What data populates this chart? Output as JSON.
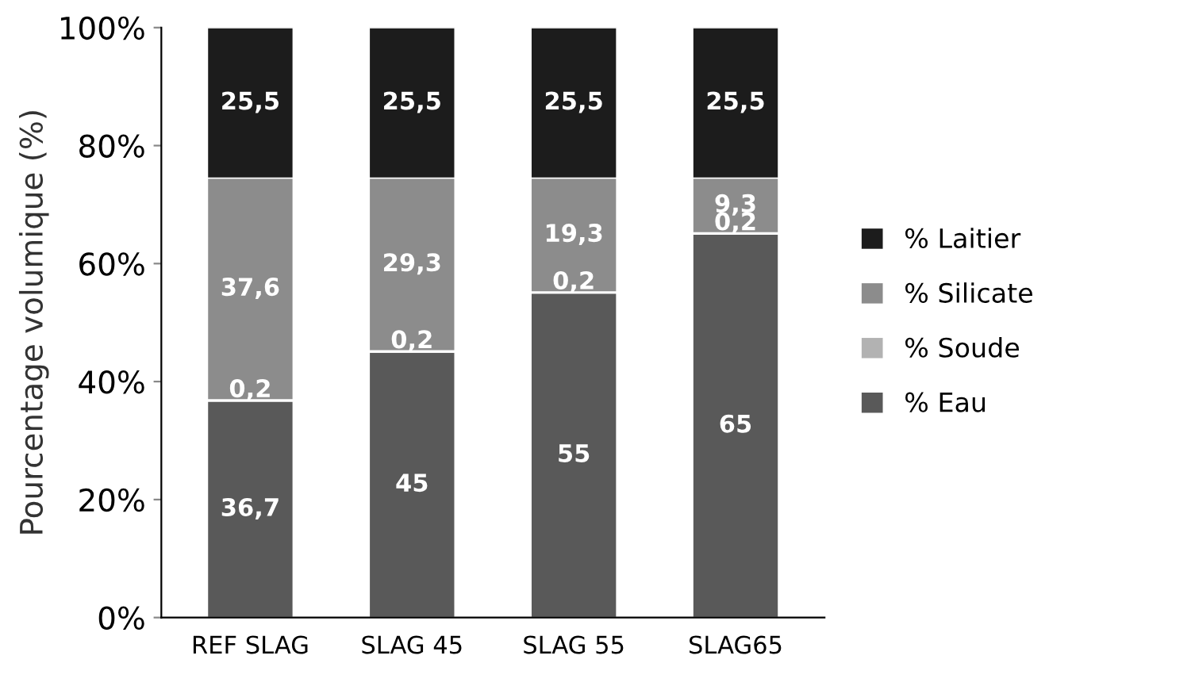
{
  "chart_data": {
    "type": "bar",
    "stacked": true,
    "ylabel": "Pourcentage volumique (%)",
    "categories": [
      "REF SLAG",
      "SLAG 45",
      "SLAG 55",
      "SLAG65"
    ],
    "ylim": [
      0,
      100
    ],
    "yticks": [
      {
        "value": 0,
        "label": "0%"
      },
      {
        "value": 20,
        "label": "20%"
      },
      {
        "value": 40,
        "label": "40%"
      },
      {
        "value": 60,
        "label": "60%"
      },
      {
        "value": 80,
        "label": "80%"
      },
      {
        "value": 100,
        "label": "100%"
      }
    ],
    "legend": "right",
    "grid": false,
    "series": [
      {
        "name": "% Eau",
        "color": "#595959",
        "values": [
          36.7,
          45,
          55,
          65
        ],
        "value_labels": [
          "36,7",
          "45",
          "55",
          "65"
        ]
      },
      {
        "name": "% Soude",
        "color": "#b2b2b2",
        "values": [
          0.2,
          0.2,
          0.2,
          0.2
        ],
        "value_labels": [
          "0,2",
          "0,2",
          "0,2",
          "0,2"
        ]
      },
      {
        "name": "% Silicate",
        "color": "#8c8c8c",
        "values": [
          37.6,
          29.3,
          19.3,
          9.3
        ],
        "value_labels": [
          "37,6",
          "29,3",
          "19,3",
          "9,3"
        ]
      },
      {
        "name": "% Laitier",
        "color": "#1c1c1c",
        "values": [
          25.5,
          25.5,
          25.5,
          25.5
        ],
        "value_labels": [
          "25,5",
          "25,5",
          "25,5",
          "25,5"
        ]
      }
    ]
  }
}
